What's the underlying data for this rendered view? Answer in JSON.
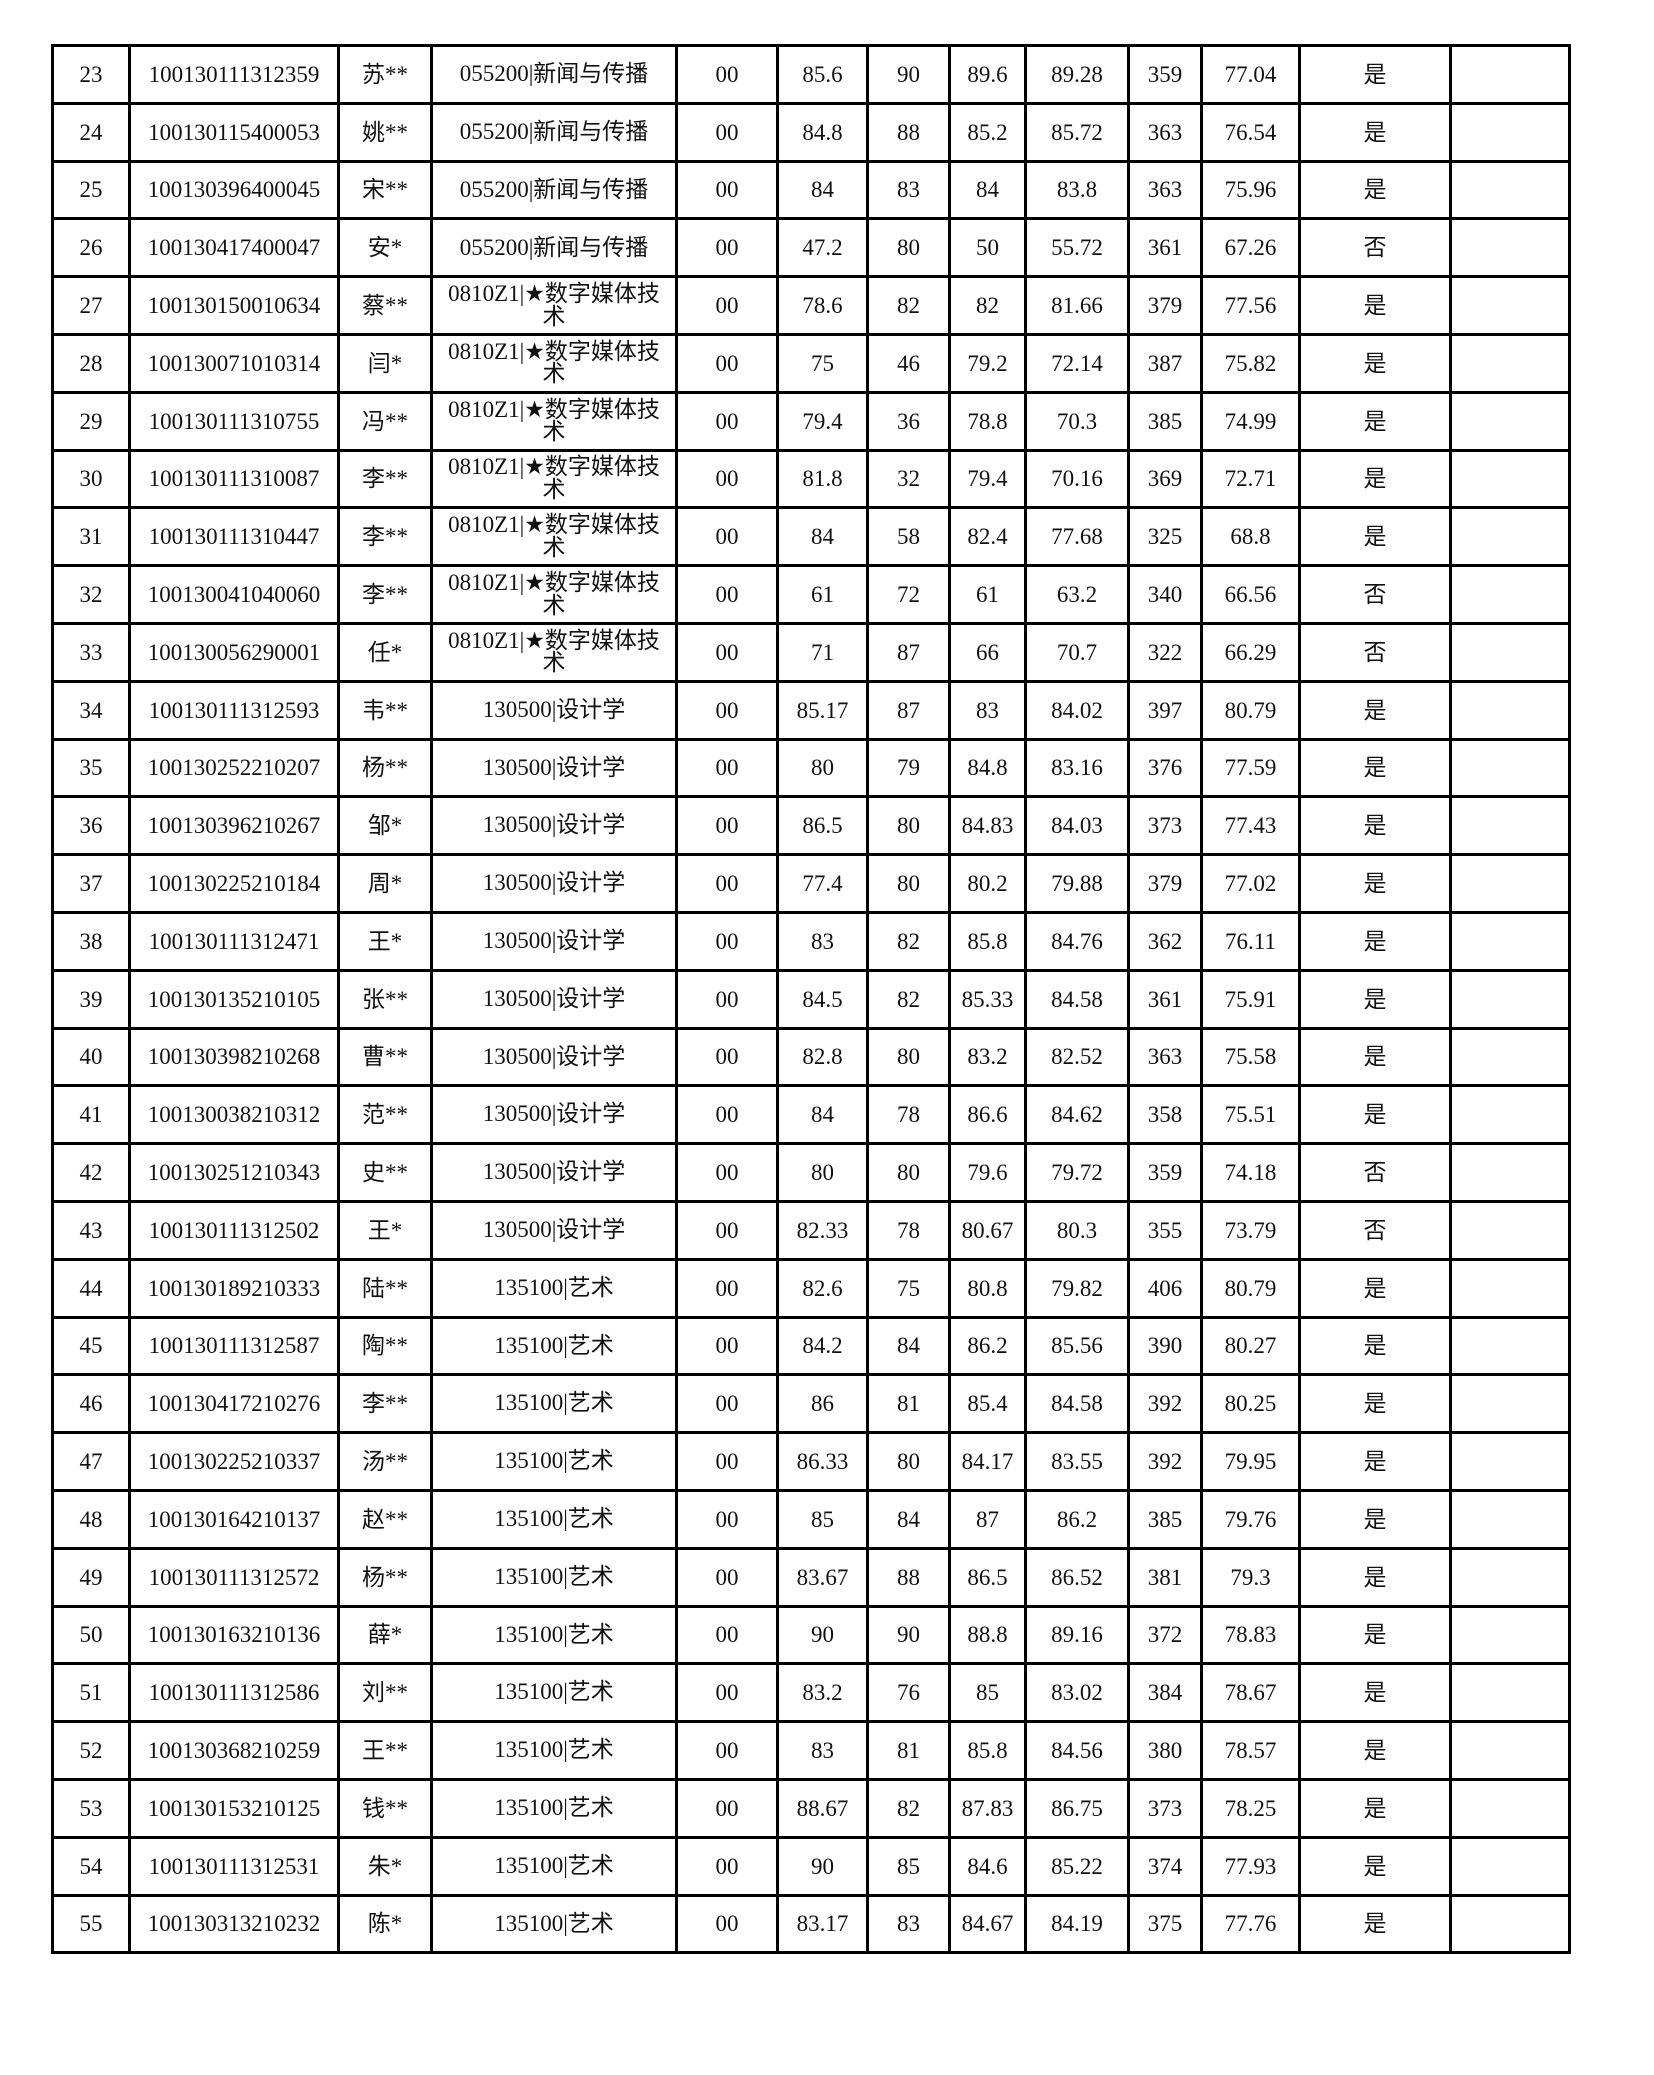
{
  "table": {
    "rows": [
      [
        "23",
        "100130111312359",
        "苏**",
        "055200|新闻与传播",
        "00",
        "85.6",
        "90",
        "89.6",
        "89.28",
        "359",
        "77.04",
        "是",
        ""
      ],
      [
        "24",
        "100130115400053",
        "姚**",
        "055200|新闻与传播",
        "00",
        "84.8",
        "88",
        "85.2",
        "85.72",
        "363",
        "76.54",
        "是",
        ""
      ],
      [
        "25",
        "100130396400045",
        "宋**",
        "055200|新闻与传播",
        "00",
        "84",
        "83",
        "84",
        "83.8",
        "363",
        "75.96",
        "是",
        ""
      ],
      [
        "26",
        "100130417400047",
        "安*",
        "055200|新闻与传播",
        "00",
        "47.2",
        "80",
        "50",
        "55.72",
        "361",
        "67.26",
        "否",
        ""
      ],
      [
        "27",
        "100130150010634",
        "蔡**",
        "0810Z1|★数字媒体技术",
        "00",
        "78.6",
        "82",
        "82",
        "81.66",
        "379",
        "77.56",
        "是",
        ""
      ],
      [
        "28",
        "100130071010314",
        "闫*",
        "0810Z1|★数字媒体技术",
        "00",
        "75",
        "46",
        "79.2",
        "72.14",
        "387",
        "75.82",
        "是",
        ""
      ],
      [
        "29",
        "100130111310755",
        "冯**",
        "0810Z1|★数字媒体技术",
        "00",
        "79.4",
        "36",
        "78.8",
        "70.3",
        "385",
        "74.99",
        "是",
        ""
      ],
      [
        "30",
        "100130111310087",
        "李**",
        "0810Z1|★数字媒体技术",
        "00",
        "81.8",
        "32",
        "79.4",
        "70.16",
        "369",
        "72.71",
        "是",
        ""
      ],
      [
        "31",
        "100130111310447",
        "李**",
        "0810Z1|★数字媒体技术",
        "00",
        "84",
        "58",
        "82.4",
        "77.68",
        "325",
        "68.8",
        "是",
        ""
      ],
      [
        "32",
        "100130041040060",
        "李**",
        "0810Z1|★数字媒体技术",
        "00",
        "61",
        "72",
        "61",
        "63.2",
        "340",
        "66.56",
        "否",
        ""
      ],
      [
        "33",
        "100130056290001",
        "任*",
        "0810Z1|★数字媒体技术",
        "00",
        "71",
        "87",
        "66",
        "70.7",
        "322",
        "66.29",
        "否",
        ""
      ],
      [
        "34",
        "100130111312593",
        "韦**",
        "130500|设计学",
        "00",
        "85.17",
        "87",
        "83",
        "84.02",
        "397",
        "80.79",
        "是",
        ""
      ],
      [
        "35",
        "100130252210207",
        "杨**",
        "130500|设计学",
        "00",
        "80",
        "79",
        "84.8",
        "83.16",
        "376",
        "77.59",
        "是",
        ""
      ],
      [
        "36",
        "100130396210267",
        "邹*",
        "130500|设计学",
        "00",
        "86.5",
        "80",
        "84.83",
        "84.03",
        "373",
        "77.43",
        "是",
        ""
      ],
      [
        "37",
        "100130225210184",
        "周*",
        "130500|设计学",
        "00",
        "77.4",
        "80",
        "80.2",
        "79.88",
        "379",
        "77.02",
        "是",
        ""
      ],
      [
        "38",
        "100130111312471",
        "王*",
        "130500|设计学",
        "00",
        "83",
        "82",
        "85.8",
        "84.76",
        "362",
        "76.11",
        "是",
        ""
      ],
      [
        "39",
        "100130135210105",
        "张**",
        "130500|设计学",
        "00",
        "84.5",
        "82",
        "85.33",
        "84.58",
        "361",
        "75.91",
        "是",
        ""
      ],
      [
        "40",
        "100130398210268",
        "曹**",
        "130500|设计学",
        "00",
        "82.8",
        "80",
        "83.2",
        "82.52",
        "363",
        "75.58",
        "是",
        ""
      ],
      [
        "41",
        "100130038210312",
        "范**",
        "130500|设计学",
        "00",
        "84",
        "78",
        "86.6",
        "84.62",
        "358",
        "75.51",
        "是",
        ""
      ],
      [
        "42",
        "100130251210343",
        "史**",
        "130500|设计学",
        "00",
        "80",
        "80",
        "79.6",
        "79.72",
        "359",
        "74.18",
        "否",
        ""
      ],
      [
        "43",
        "100130111312502",
        "王*",
        "130500|设计学",
        "00",
        "82.33",
        "78",
        "80.67",
        "80.3",
        "355",
        "73.79",
        "否",
        ""
      ],
      [
        "44",
        "100130189210333",
        "陆**",
        "135100|艺术",
        "00",
        "82.6",
        "75",
        "80.8",
        "79.82",
        "406",
        "80.79",
        "是",
        ""
      ],
      [
        "45",
        "100130111312587",
        "陶**",
        "135100|艺术",
        "00",
        "84.2",
        "84",
        "86.2",
        "85.56",
        "390",
        "80.27",
        "是",
        ""
      ],
      [
        "46",
        "100130417210276",
        "李**",
        "135100|艺术",
        "00",
        "86",
        "81",
        "85.4",
        "84.58",
        "392",
        "80.25",
        "是",
        ""
      ],
      [
        "47",
        "100130225210337",
        "汤**",
        "135100|艺术",
        "00",
        "86.33",
        "80",
        "84.17",
        "83.55",
        "392",
        "79.95",
        "是",
        ""
      ],
      [
        "48",
        "100130164210137",
        "赵**",
        "135100|艺术",
        "00",
        "85",
        "84",
        "87",
        "86.2",
        "385",
        "79.76",
        "是",
        ""
      ],
      [
        "49",
        "100130111312572",
        "杨**",
        "135100|艺术",
        "00",
        "83.67",
        "88",
        "86.5",
        "86.52",
        "381",
        "79.3",
        "是",
        ""
      ],
      [
        "50",
        "100130163210136",
        "薛*",
        "135100|艺术",
        "00",
        "90",
        "90",
        "88.8",
        "89.16",
        "372",
        "78.83",
        "是",
        ""
      ],
      [
        "51",
        "100130111312586",
        "刘**",
        "135100|艺术",
        "00",
        "83.2",
        "76",
        "85",
        "83.02",
        "384",
        "78.67",
        "是",
        ""
      ],
      [
        "52",
        "100130368210259",
        "王**",
        "135100|艺术",
        "00",
        "83",
        "81",
        "85.8",
        "84.56",
        "380",
        "78.57",
        "是",
        ""
      ],
      [
        "53",
        "100130153210125",
        "钱**",
        "135100|艺术",
        "00",
        "88.67",
        "82",
        "87.83",
        "86.75",
        "373",
        "78.25",
        "是",
        ""
      ],
      [
        "54",
        "100130111312531",
        "朱*",
        "135100|艺术",
        "00",
        "90",
        "85",
        "84.6",
        "85.22",
        "374",
        "77.93",
        "是",
        ""
      ],
      [
        "55",
        "100130313210232",
        "陈*",
        "135100|艺术",
        "00",
        "83.17",
        "83",
        "84.67",
        "84.19",
        "375",
        "77.76",
        "是",
        ""
      ]
    ]
  }
}
